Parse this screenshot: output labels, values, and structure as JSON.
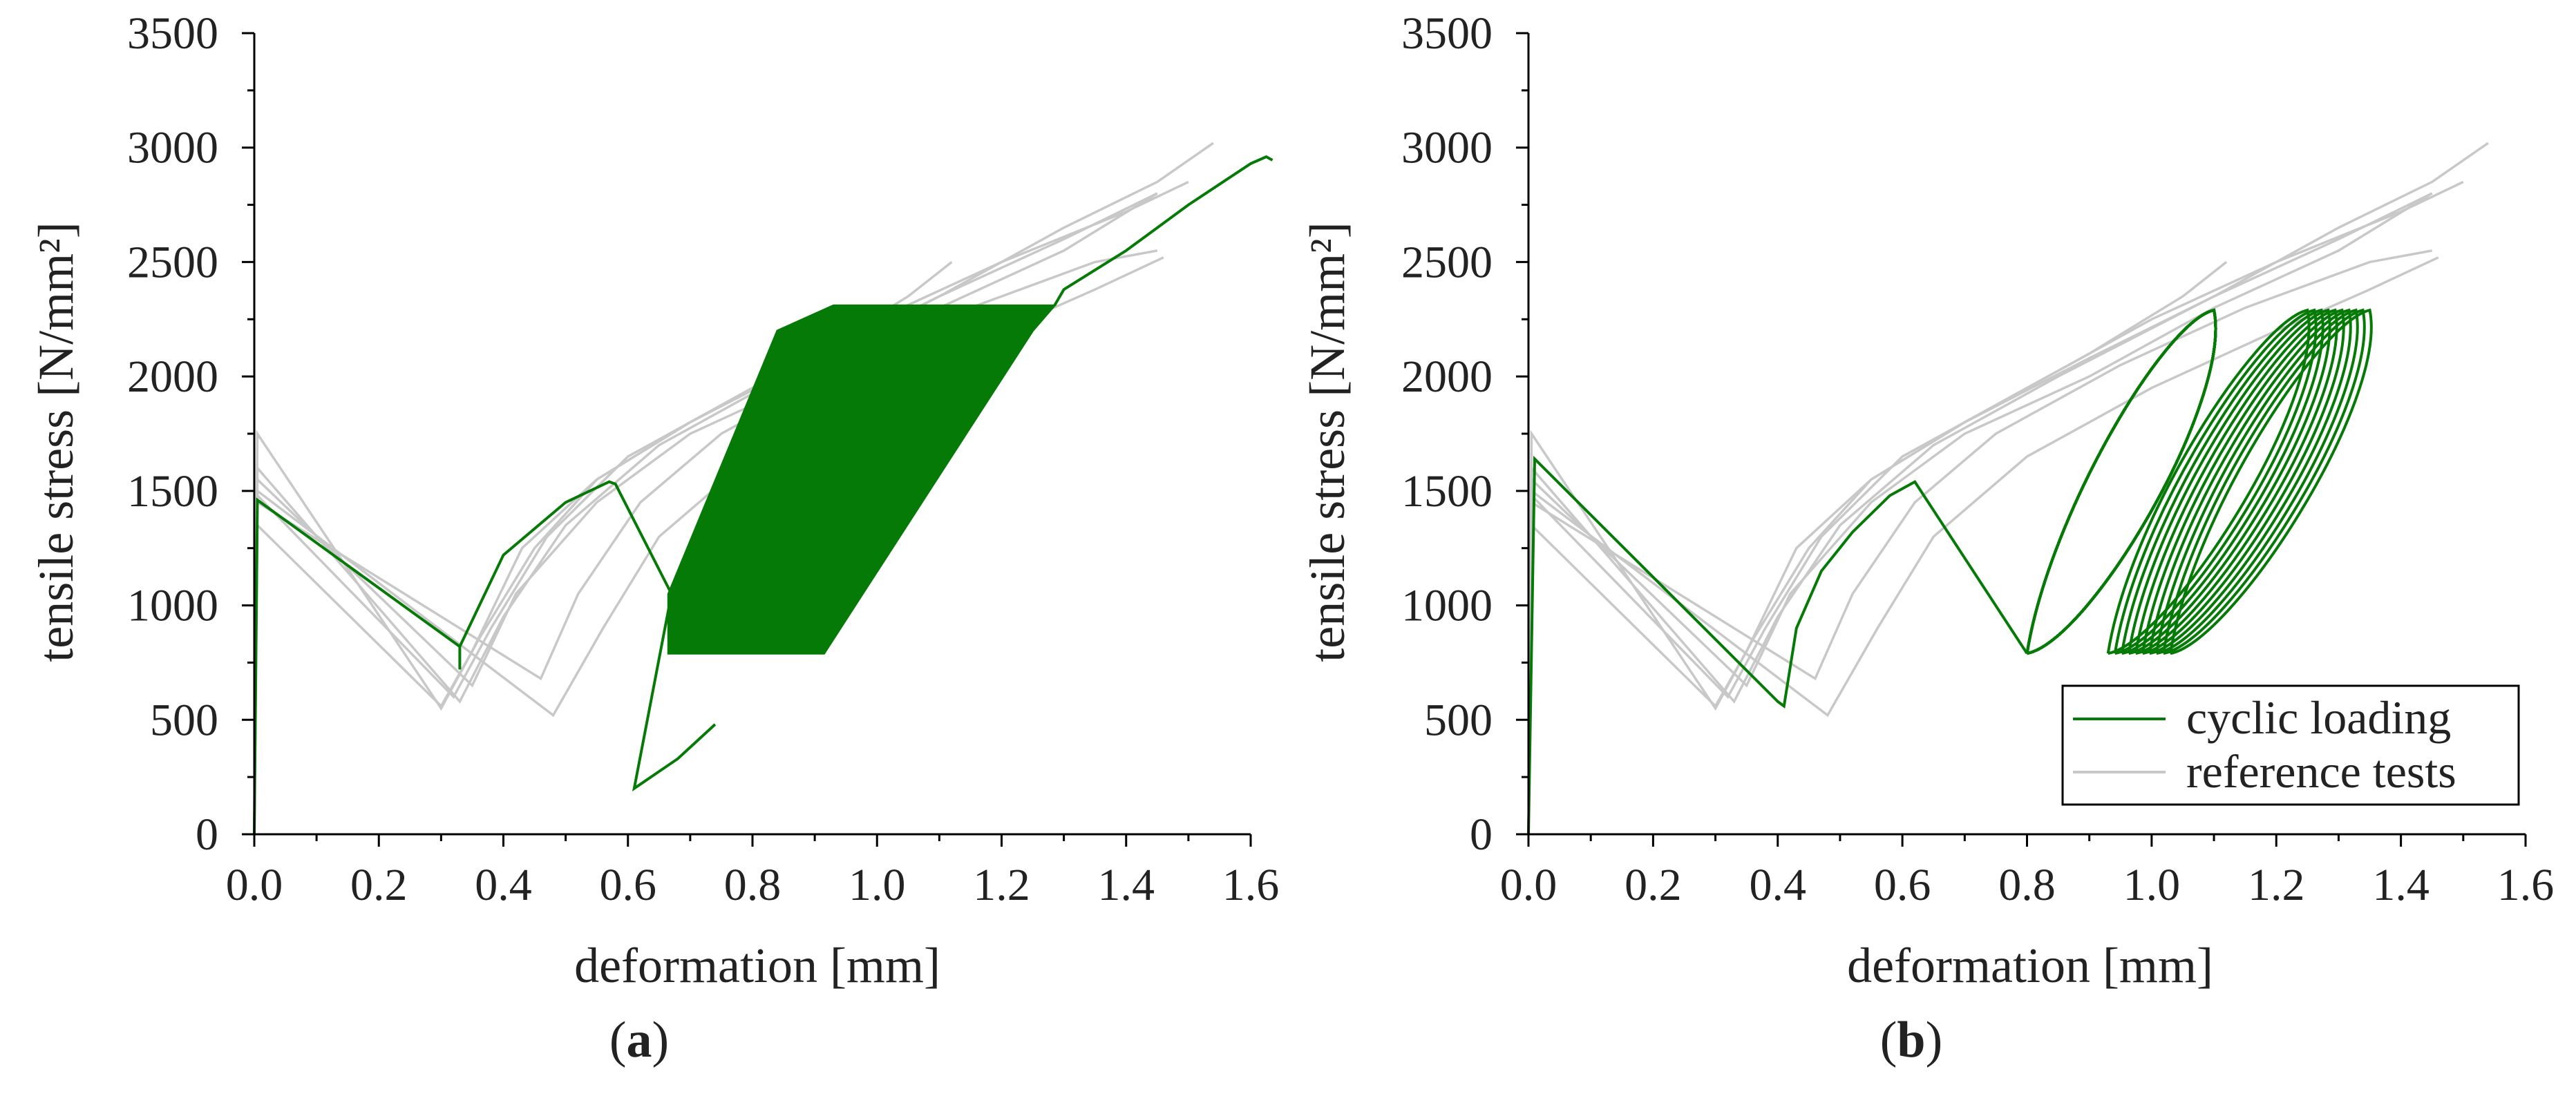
{
  "figure": {
    "legend": {
      "cyclic_label": "cyclic loading",
      "reference_label": "reference tests"
    },
    "colors": {
      "cyclic": "#067a06",
      "reference": "#c8c8c8",
      "axis": "#000000"
    }
  },
  "chart_data": [
    {
      "id": "a",
      "type": "line",
      "panel_label_prefix": "(",
      "panel_label": "a",
      "panel_label_suffix": ")",
      "xlabel": "deformation [mm]",
      "ylabel": "tensile stress [N/mm²]",
      "xlim": [
        0,
        1.6
      ],
      "ylim": [
        0,
        3500
      ],
      "xticks": [
        0.0,
        0.2,
        0.4,
        0.6,
        0.8,
        1.0,
        1.2,
        1.4,
        1.6
      ],
      "xtick_labels": [
        "0.0",
        "0.2",
        "0.4",
        "0.6",
        "0.8",
        "1.0",
        "1.2",
        "1.4",
        "1.6"
      ],
      "yticks": [
        0,
        500,
        1000,
        1500,
        2000,
        2500,
        3000,
        3500
      ],
      "ytick_labels": [
        "0",
        "500",
        "1000",
        "1500",
        "2000",
        "2500",
        "3000",
        "3500"
      ],
      "legend_visible": false,
      "reference_series": [
        {
          "name": "reference test 1",
          "points": [
            [
              0,
              0
            ],
            [
              0.005,
              1750
            ],
            [
              0.3,
              550
            ],
            [
              0.36,
              850
            ],
            [
              0.45,
              1250
            ],
            [
              0.55,
              1550
            ],
            [
              0.7,
              1800
            ],
            [
              0.9,
              2080
            ],
            [
              1.1,
              2350
            ],
            [
              1.3,
              2600
            ],
            [
              1.45,
              2800
            ]
          ]
        },
        {
          "name": "reference test 2",
          "points": [
            [
              0,
              0
            ],
            [
              0.005,
              1600
            ],
            [
              0.33,
              580
            ],
            [
              0.4,
              950
            ],
            [
              0.5,
              1350
            ],
            [
              0.65,
              1700
            ],
            [
              0.85,
              2000
            ],
            [
              1.1,
              2350
            ],
            [
              1.3,
              2650
            ],
            [
              1.45,
              2850
            ],
            [
              1.54,
              3020
            ]
          ]
        },
        {
          "name": "reference test 3",
          "points": [
            [
              0,
              0
            ],
            [
              0.005,
              1550
            ],
            [
              0.35,
              650
            ],
            [
              0.42,
              1050
            ],
            [
              0.55,
              1450
            ],
            [
              0.7,
              1750
            ],
            [
              0.9,
              2000
            ],
            [
              1.1,
              2300
            ],
            [
              1.3,
              2550
            ],
            [
              1.45,
              2800
            ]
          ]
        },
        {
          "name": "reference test 4",
          "points": [
            [
              0,
              0
            ],
            [
              0.005,
              1480
            ],
            [
              0.32,
              600
            ],
            [
              0.38,
              900
            ],
            [
              0.47,
              1300
            ],
            [
              0.6,
              1650
            ],
            [
              0.8,
              1950
            ],
            [
              1.0,
              2250
            ],
            [
              1.2,
              2500
            ],
            [
              1.4,
              2720
            ],
            [
              1.5,
              2850
            ]
          ]
        },
        {
          "name": "reference test 5",
          "points": [
            [
              0,
              0
            ],
            [
              0.005,
              1450
            ],
            [
              0.46,
              680
            ],
            [
              0.52,
              1050
            ],
            [
              0.62,
              1450
            ],
            [
              0.75,
              1750
            ],
            [
              0.95,
              2050
            ],
            [
              1.15,
              2300
            ],
            [
              1.35,
              2500
            ],
            [
              1.45,
              2550
            ]
          ]
        },
        {
          "name": "reference test 6",
          "points": [
            [
              0,
              0
            ],
            [
              0.005,
              1500
            ],
            [
              0.48,
              520
            ],
            [
              0.56,
              900
            ],
            [
              0.65,
              1300
            ],
            [
              0.8,
              1650
            ],
            [
              1.0,
              1950
            ],
            [
              1.2,
              2200
            ],
            [
              1.35,
              2380
            ],
            [
              1.46,
              2520
            ]
          ]
        },
        {
          "name": "reference test 7",
          "points": [
            [
              0,
              0
            ],
            [
              0.005,
              1350
            ],
            [
              0.3,
              560
            ],
            [
              0.35,
              800
            ],
            [
              0.43,
              1250
            ],
            [
              0.55,
              1550
            ],
            [
              0.7,
              1800
            ],
            [
              0.9,
              2100
            ],
            [
              1.05,
              2350
            ],
            [
              1.12,
              2500
            ]
          ]
        }
      ],
      "cyclic_path": [
        [
          0,
          0
        ],
        [
          0.005,
          1460
        ],
        [
          0.33,
          820
        ],
        [
          0.33,
          720
        ],
        [
          0.33,
          820
        ],
        [
          0.4,
          1220
        ],
        [
          0.5,
          1450
        ],
        [
          0.57,
          1540
        ],
        [
          0.58,
          1530
        ],
        [
          0.67,
          1050
        ],
        [
          0.61,
          200
        ],
        [
          0.68,
          330
        ],
        [
          0.74,
          480
        ]
      ],
      "cyclic_band": {
        "lower_y": 790,
        "upper_y": 2310,
        "bottom_left_x": 0.665,
        "bottom_right_x": 0.915,
        "top_left_x": 0.93,
        "top_right_x": 1.285,
        "top_left_slope_start": [
          0.665,
          1050
        ],
        "top_left_slope_end": [
          0.84,
          2200
        ],
        "bottom_right_slope_start": [
          0.915,
          790
        ],
        "bottom_right_slope_end": [
          1.25,
          2200
        ]
      },
      "cyclic_tail": [
        [
          1.285,
          2310
        ],
        [
          1.3,
          2380
        ],
        [
          1.4,
          2550
        ],
        [
          1.5,
          2750
        ],
        [
          1.6,
          2930
        ],
        [
          1.625,
          2960
        ],
        [
          1.635,
          2945
        ]
      ]
    },
    {
      "id": "b",
      "type": "line",
      "panel_label_prefix": "(",
      "panel_label": "b",
      "panel_label_suffix": ")",
      "xlabel": "deformation [mm]",
      "ylabel": "tensile stress [N/mm²]",
      "xlim": [
        0,
        1.6
      ],
      "ylim": [
        0,
        3500
      ],
      "xticks": [
        0.0,
        0.2,
        0.4,
        0.6,
        0.8,
        1.0,
        1.2,
        1.4,
        1.6
      ],
      "xtick_labels": [
        "0.0",
        "0.2",
        "0.4",
        "0.6",
        "0.8",
        "1.0",
        "1.2",
        "1.4",
        "1.6"
      ],
      "yticks": [
        0,
        500,
        1000,
        1500,
        2000,
        2500,
        3000,
        3500
      ],
      "ytick_labels": [
        "0",
        "500",
        "1000",
        "1500",
        "2000",
        "2500",
        "3000",
        "3500"
      ],
      "legend_visible": true,
      "reference_series": [
        {
          "name": "reference test 1",
          "points": [
            [
              0,
              0
            ],
            [
              0.005,
              1750
            ],
            [
              0.3,
              550
            ],
            [
              0.36,
              850
            ],
            [
              0.45,
              1250
            ],
            [
              0.55,
              1550
            ],
            [
              0.7,
              1800
            ],
            [
              0.9,
              2080
            ],
            [
              1.1,
              2350
            ],
            [
              1.3,
              2600
            ],
            [
              1.45,
              2800
            ]
          ]
        },
        {
          "name": "reference test 2",
          "points": [
            [
              0,
              0
            ],
            [
              0.005,
              1600
            ],
            [
              0.33,
              580
            ],
            [
              0.4,
              950
            ],
            [
              0.5,
              1350
            ],
            [
              0.65,
              1700
            ],
            [
              0.85,
              2000
            ],
            [
              1.1,
              2350
            ],
            [
              1.3,
              2650
            ],
            [
              1.45,
              2850
            ],
            [
              1.54,
              3020
            ]
          ]
        },
        {
          "name": "reference test 3",
          "points": [
            [
              0,
              0
            ],
            [
              0.005,
              1550
            ],
            [
              0.35,
              650
            ],
            [
              0.42,
              1050
            ],
            [
              0.55,
              1450
            ],
            [
              0.7,
              1750
            ],
            [
              0.9,
              2000
            ],
            [
              1.1,
              2300
            ],
            [
              1.3,
              2550
            ],
            [
              1.45,
              2800
            ]
          ]
        },
        {
          "name": "reference test 4",
          "points": [
            [
              0,
              0
            ],
            [
              0.005,
              1480
            ],
            [
              0.32,
              600
            ],
            [
              0.38,
              900
            ],
            [
              0.47,
              1300
            ],
            [
              0.6,
              1650
            ],
            [
              0.8,
              1950
            ],
            [
              1.0,
              2250
            ],
            [
              1.2,
              2500
            ],
            [
              1.4,
              2720
            ],
            [
              1.5,
              2850
            ]
          ]
        },
        {
          "name": "reference test 5",
          "points": [
            [
              0,
              0
            ],
            [
              0.005,
              1450
            ],
            [
              0.46,
              680
            ],
            [
              0.52,
              1050
            ],
            [
              0.62,
              1450
            ],
            [
              0.75,
              1750
            ],
            [
              0.95,
              2050
            ],
            [
              1.15,
              2300
            ],
            [
              1.35,
              2500
            ],
            [
              1.45,
              2550
            ]
          ]
        },
        {
          "name": "reference test 6",
          "points": [
            [
              0,
              0
            ],
            [
              0.005,
              1500
            ],
            [
              0.48,
              520
            ],
            [
              0.56,
              900
            ],
            [
              0.65,
              1300
            ],
            [
              0.8,
              1650
            ],
            [
              1.0,
              1950
            ],
            [
              1.2,
              2200
            ],
            [
              1.35,
              2380
            ],
            [
              1.46,
              2520
            ]
          ]
        },
        {
          "name": "reference test 7",
          "points": [
            [
              0,
              0
            ],
            [
              0.005,
              1350
            ],
            [
              0.3,
              560
            ],
            [
              0.35,
              800
            ],
            [
              0.43,
              1250
            ],
            [
              0.55,
              1550
            ],
            [
              0.7,
              1800
            ],
            [
              0.9,
              2100
            ],
            [
              1.05,
              2350
            ],
            [
              1.12,
              2500
            ]
          ]
        }
      ],
      "cyclic_path": [
        [
          0,
          0
        ],
        [
          0.01,
          1640
        ],
        [
          0.4,
          580
        ],
        [
          0.41,
          560
        ],
        [
          0.43,
          900
        ],
        [
          0.47,
          1150
        ],
        [
          0.52,
          1320
        ],
        [
          0.58,
          1480
        ],
        [
          0.62,
          1540
        ],
        [
          0.8,
          790
        ]
      ],
      "cyclic_loops": [
        {
          "x_min": 0.8,
          "x_max": 1.12,
          "y_min": 790,
          "y_max": 2290,
          "count": 22,
          "spread": 0.32
        },
        {
          "x_min": 0.93,
          "x_max": 1.37,
          "y_min": 790,
          "y_max": 2290,
          "count": 10,
          "spread": 0.34
        }
      ]
    }
  ]
}
